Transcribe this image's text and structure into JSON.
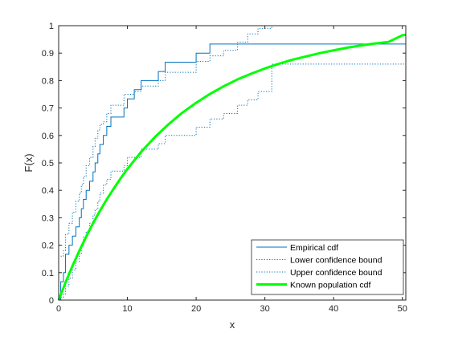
{
  "chart_data": {
    "type": "line",
    "xlabel": "x",
    "ylabel": "F(x)",
    "xlim": [
      0,
      50.5
    ],
    "ylim": [
      0,
      1
    ],
    "x_ticks": [
      0,
      10,
      20,
      30,
      40,
      50
    ],
    "x_tick_labels": [
      "0",
      "10",
      "20",
      "30",
      "40",
      "50"
    ],
    "y_ticks": [
      0,
      0.1,
      0.2,
      0.3,
      0.4,
      0.5,
      0.6,
      0.7,
      0.8,
      0.9,
      1
    ],
    "y_tick_labels": [
      "0",
      "0.1",
      "0.2",
      "0.3",
      "0.4",
      "0.5",
      "0.6",
      "0.7",
      "0.8",
      "0.9",
      "1"
    ],
    "grid": false,
    "legend_position": "bottom-right",
    "series": [
      {
        "name": "Empirical cdf",
        "style": "stairs",
        "color": "#0072BD",
        "x": [
          0,
          0.3,
          0.7,
          1.0,
          1.5,
          2.0,
          2.5,
          3.0,
          3.3,
          3.6,
          4.0,
          4.5,
          5.0,
          5.3,
          5.7,
          6.0,
          6.5,
          7.0,
          7.6,
          8.5,
          9.5,
          10.0,
          10.5,
          11.0,
          12.0,
          13.5,
          14.5,
          15.5,
          17.0,
          20.0,
          21.0,
          22.0,
          23.0,
          26.0,
          27.5,
          29.0,
          31.0,
          50.5
        ],
        "y": [
          0,
          0.067,
          0.1,
          0.167,
          0.2,
          0.233,
          0.267,
          0.3,
          0.333,
          0.367,
          0.4,
          0.433,
          0.467,
          0.5,
          0.533,
          0.567,
          0.6,
          0.633,
          0.667,
          0.667,
          0.7,
          0.733,
          0.733,
          0.767,
          0.8,
          0.8,
          0.833,
          0.867,
          0.867,
          0.9,
          0.9,
          0.933,
          0.933,
          0.933,
          0.933,
          0.933,
          0.933,
          0.933
        ]
      },
      {
        "name": "Lower confidence bound",
        "style": "stairs-dotted",
        "color": "#0072BD",
        "x": [
          0.3,
          0.7,
          1.0,
          1.5,
          2.0,
          2.5,
          3.0,
          3.3,
          3.6,
          4.0,
          4.5,
          5.0,
          5.3,
          5.7,
          6.0,
          6.5,
          7.0,
          7.6,
          9.5,
          10.0,
          11.0,
          12.0,
          14.5,
          15.5,
          17.0,
          20.0,
          22.0,
          24.0,
          26.0,
          27.5,
          29.0,
          31.0,
          50.5
        ],
        "y": [
          0.01,
          0.02,
          0.05,
          0.08,
          0.11,
          0.14,
          0.17,
          0.2,
          0.23,
          0.25,
          0.28,
          0.31,
          0.33,
          0.36,
          0.39,
          0.42,
          0.44,
          0.47,
          0.49,
          0.52,
          0.52,
          0.55,
          0.57,
          0.6,
          0.6,
          0.63,
          0.66,
          0.68,
          0.71,
          0.73,
          0.76,
          0.86,
          0.86
        ]
      },
      {
        "name": "Upper confidence bound",
        "style": "stairs-dotted",
        "color": "#0072BD",
        "x": [
          0.3,
          0.7,
          1.0,
          1.5,
          2.0,
          2.5,
          3.0,
          3.3,
          3.6,
          4.0,
          4.5,
          5.0,
          5.3,
          5.7,
          6.0,
          6.5,
          7.0,
          7.6,
          9.5,
          10.0,
          11.0,
          12.0,
          14.5,
          15.5,
          17.0,
          20.0,
          22.0,
          24.0,
          26.0,
          27.5,
          29.0,
          31.0,
          50.5
        ],
        "y": [
          0.16,
          0.18,
          0.24,
          0.28,
          0.32,
          0.36,
          0.39,
          0.42,
          0.45,
          0.49,
          0.52,
          0.56,
          0.59,
          0.62,
          0.64,
          0.65,
          0.68,
          0.71,
          0.75,
          0.75,
          0.76,
          0.78,
          0.8,
          0.83,
          0.83,
          0.87,
          0.89,
          0.91,
          0.94,
          0.97,
          0.99,
          1.0,
          1.0
        ]
      },
      {
        "name": "Known population cdf",
        "style": "smooth",
        "color": "#00FF00",
        "x": [
          0,
          1,
          2,
          3,
          4,
          5,
          6,
          7,
          8,
          9,
          10,
          12,
          14,
          16,
          18,
          20,
          22,
          24,
          26,
          28,
          30,
          32,
          34,
          36,
          38,
          40,
          42,
          44,
          46,
          48,
          50,
          50.5
        ],
        "y": [
          0,
          0.064,
          0.124,
          0.179,
          0.231,
          0.28,
          0.325,
          0.367,
          0.406,
          0.443,
          0.478,
          0.54,
          0.594,
          0.641,
          0.683,
          0.719,
          0.751,
          0.779,
          0.804,
          0.825,
          0.844,
          0.861,
          0.876,
          0.888,
          0.9,
          0.91,
          0.92,
          0.928,
          0.935,
          0.941,
          0.965,
          0.967
        ]
      }
    ]
  }
}
